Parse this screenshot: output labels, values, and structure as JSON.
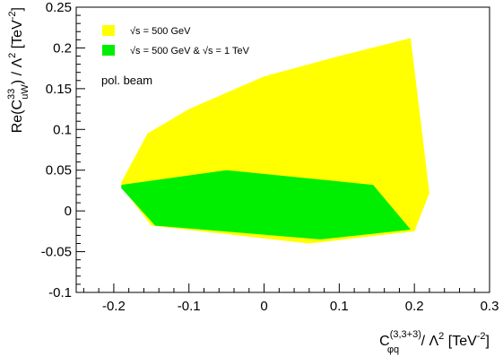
{
  "chart_data": {
    "type": "area",
    "title": "",
    "x_axis": {
      "label_main": "C",
      "label_sup": "(3,3+3)",
      "label_sub": "φq",
      "label_tail": " / Λ",
      "label_tail_sup": "2",
      "label_unit": " [TeV",
      "label_unit_sup": "-2",
      "label_close": "]",
      "xlim": [
        -0.25,
        0.3
      ],
      "ticks": [
        -0.2,
        -0.1,
        0,
        0.1,
        0.2,
        0.3
      ],
      "tick_labels": [
        "-0.2",
        "-0.1",
        "0",
        "0.1",
        "0.2",
        "0.3"
      ]
    },
    "y_axis": {
      "label_main": "Re(C",
      "label_sup": "33",
      "label_sub": "uW",
      "label_tail": ") / Λ",
      "label_tail_sup": "2",
      "label_unit": " [TeV",
      "label_unit_sup": "-2",
      "label_close": "]",
      "ylim": [
        -0.1,
        0.25
      ],
      "ticks": [
        -0.1,
        -0.05,
        0,
        0.05,
        0.1,
        0.15,
        0.2,
        0.25
      ],
      "tick_labels": [
        "-0.1",
        "-0.05",
        "0",
        "0.05",
        "0.1",
        "0.15",
        "0.2",
        "0.25"
      ]
    },
    "grid": false,
    "legend_position": "top-left",
    "annotation": "pol. beam",
    "series": [
      {
        "name": "√s = 500 GeV",
        "color": "#ffff00",
        "polygon": [
          [
            -0.19,
            0.035
          ],
          [
            -0.155,
            0.095
          ],
          [
            -0.1,
            0.125
          ],
          [
            0.0,
            0.165
          ],
          [
            0.1,
            0.19
          ],
          [
            0.195,
            0.212
          ],
          [
            0.22,
            0.022
          ],
          [
            0.2,
            -0.025
          ],
          [
            0.06,
            -0.04
          ],
          [
            -0.15,
            -0.018
          ],
          [
            -0.19,
            0.03
          ]
        ]
      },
      {
        "name": "√s = 500 GeV & √s = 1 TeV",
        "color": "#00ee00",
        "polygon": [
          [
            -0.19,
            0.032
          ],
          [
            -0.05,
            0.05
          ],
          [
            0.145,
            0.032
          ],
          [
            0.195,
            -0.023
          ],
          [
            0.075,
            -0.035
          ],
          [
            -0.145,
            -0.018
          ],
          [
            -0.19,
            0.028
          ]
        ]
      }
    ]
  }
}
